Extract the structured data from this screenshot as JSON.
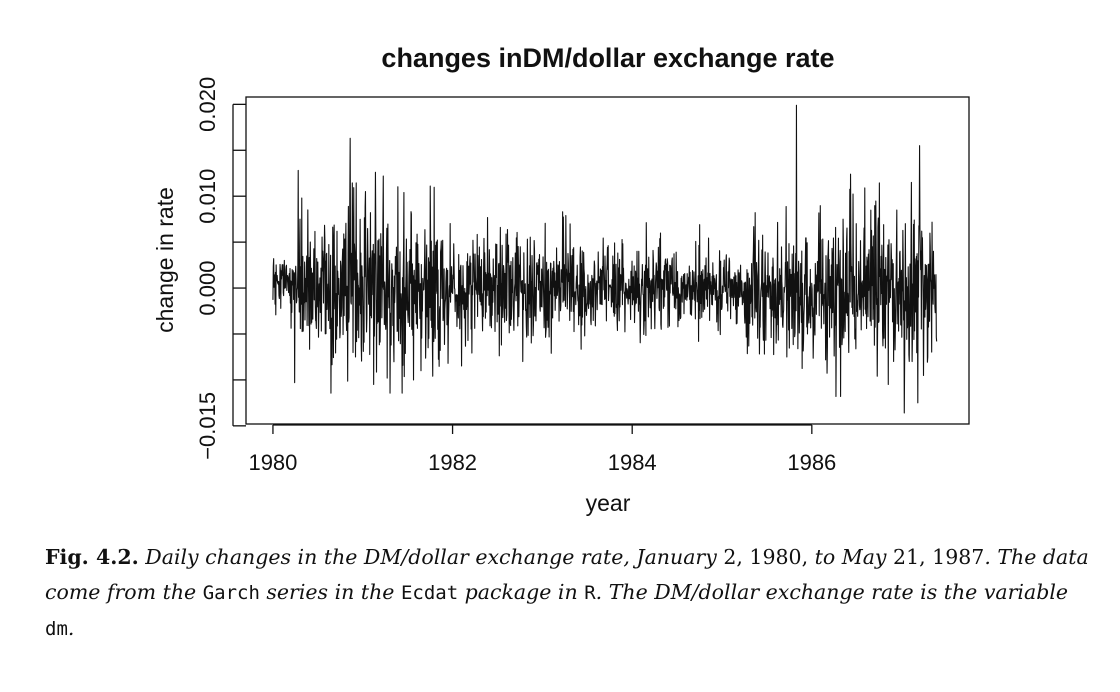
{
  "chart_data": {
    "type": "line",
    "title": "changes inDM/dollar exchange rate",
    "xlabel": "year",
    "ylabel": "change in rate",
    "xlim": [
      1979.7,
      1987.75
    ],
    "ylim": [
      -0.0148,
      0.0208
    ],
    "x_ticks": [
      1980,
      1982,
      1984,
      1986
    ],
    "x_tick_labels": [
      "1980",
      "1982",
      "1984",
      "1986"
    ],
    "y_ticks": [
      -0.015,
      -0.01,
      -0.005,
      0.0,
      0.005,
      0.01,
      0.015,
      0.02
    ],
    "y_tick_labels": [
      "−0.015",
      "",
      "",
      "0.000",
      "",
      "0.010",
      "",
      "0.020"
    ],
    "grid": false,
    "legend": "none",
    "color": "#111111",
    "x_start": "1980-01-02",
    "x_end": "1987-05-21",
    "n_points": 1866,
    "regimes": [
      {
        "x": [
          1980.0,
          1980.27
        ],
        "sd": 0.0015
      },
      {
        "x": [
          1980.27,
          1980.9
        ],
        "sd": 0.0038
      },
      {
        "x": [
          1980.9,
          1981.9
        ],
        "sd": 0.0043
      },
      {
        "x": [
          1981.9,
          1983.3
        ],
        "sd": 0.0028
      },
      {
        "x": [
          1983.3,
          1985.25
        ],
        "sd": 0.0022
      },
      {
        "x": [
          1985.25,
          1986.0
        ],
        "sd": 0.0035
      },
      {
        "x": [
          1986.0,
          1987.39
        ],
        "sd": 0.0042
      }
    ],
    "spikes": [
      {
        "x": 1980.24,
        "y": -0.0103
      },
      {
        "x": 1980.28,
        "y": 0.0128
      },
      {
        "x": 1980.32,
        "y": 0.0098
      },
      {
        "x": 1980.86,
        "y": 0.0163
      },
      {
        "x": 1980.92,
        "y": -0.0075
      },
      {
        "x": 1981.03,
        "y": 0.0105
      },
      {
        "x": 1981.12,
        "y": -0.0105
      },
      {
        "x": 1981.14,
        "y": 0.0126
      },
      {
        "x": 1981.23,
        "y": 0.0122
      },
      {
        "x": 1981.27,
        "y": -0.0098
      },
      {
        "x": 1981.75,
        "y": 0.0111
      },
      {
        "x": 1981.65,
        "y": -0.009
      },
      {
        "x": 1982.78,
        "y": -0.008
      },
      {
        "x": 1983.1,
        "y": -0.0071
      },
      {
        "x": 1984.75,
        "y": 0.0069
      },
      {
        "x": 1985.72,
        "y": -0.0075
      },
      {
        "x": 1985.83,
        "y": 0.0199
      },
      {
        "x": 1986.27,
        "y": -0.0118
      },
      {
        "x": 1986.32,
        "y": -0.0118
      },
      {
        "x": 1986.43,
        "y": 0.0124
      },
      {
        "x": 1986.59,
        "y": 0.0109
      },
      {
        "x": 1986.85,
        "y": -0.0105
      },
      {
        "x": 1987.03,
        "y": -0.0136
      },
      {
        "x": 1987.11,
        "y": 0.0115
      },
      {
        "x": 1987.18,
        "y": -0.0125
      },
      {
        "x": 1987.2,
        "y": 0.0155
      },
      {
        "x": 1987.29,
        "y": -0.0075
      }
    ]
  },
  "caption": {
    "label": "Fig. 4.2.",
    "t1": " Daily changes in the DM/dollar exchange rate, January ",
    "n1": "2, 1980,",
    "t2": " to May ",
    "n2": "21,",
    "n3": "1987",
    "t3": ". The data come from the ",
    "c1": "Garch",
    "t4": " series in the ",
    "c2": "Ecdat",
    "t5": " package in ",
    "c3": "R",
    "t6": ". The DM/dollar exchange rate is the variable ",
    "c4": "dm",
    "t7": "."
  }
}
